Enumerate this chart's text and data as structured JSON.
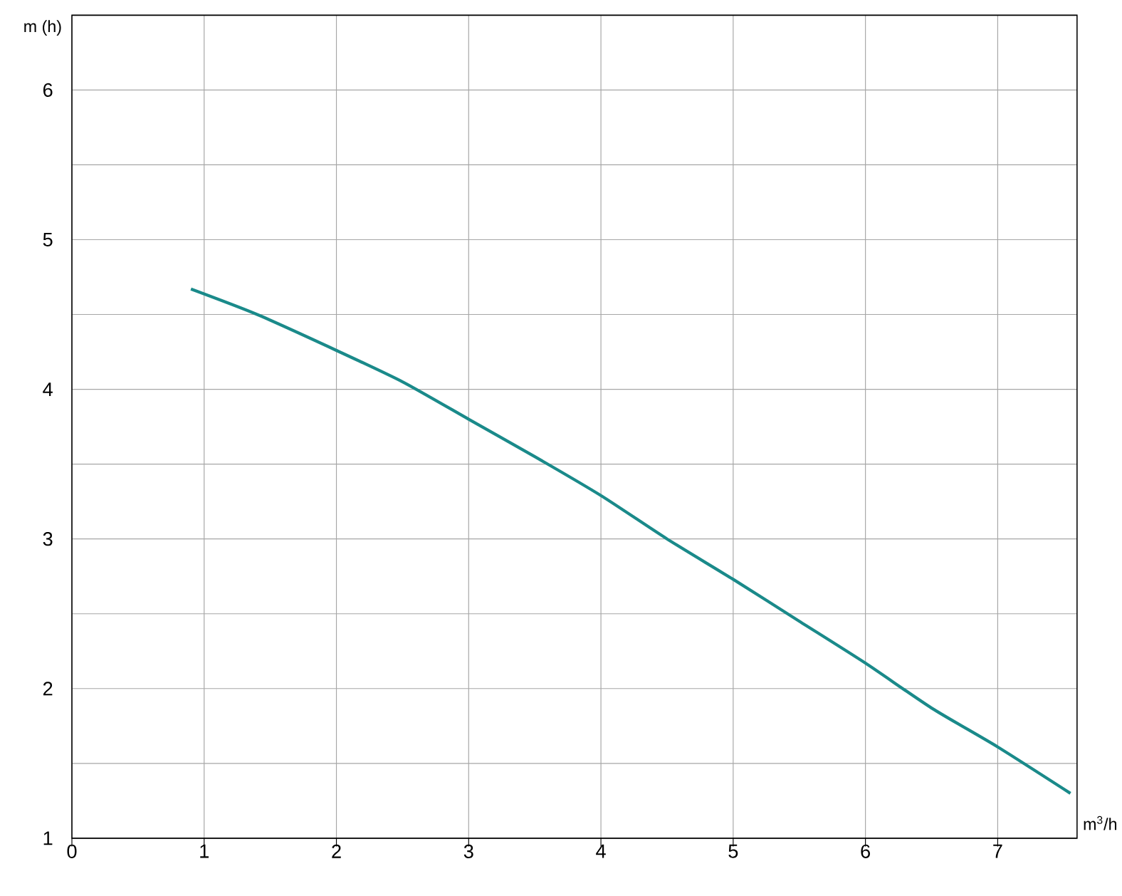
{
  "chart_data": {
    "type": "line",
    "xlabel": "m$^{3}$/h",
    "ylabel": "m (h)",
    "x": [
      0.9,
      1.4,
      2,
      2.5,
      3,
      3.5,
      4,
      4.5,
      5,
      5.5,
      6,
      6.5,
      7,
      7.55
    ],
    "series": [
      {
        "color": "#1a8a8a",
        "values": [
          4.67,
          4.5,
          4.26,
          4.05,
          3.8,
          3.55,
          3.29,
          3.0,
          2.73,
          2.45,
          2.17,
          1.87,
          1.61,
          1.3
        ]
      }
    ],
    "xlim": [
      0,
      7.6
    ],
    "ylim": [
      1,
      6.5
    ],
    "xticks": [
      0,
      1,
      2,
      3,
      4,
      5,
      6,
      7
    ],
    "yticks": [
      {
        "value": 1,
        "label": "1"
      },
      {
        "value": 1.5,
        "label": null
      },
      {
        "value": 2,
        "label": "2"
      },
      {
        "value": 2.5,
        "label": null
      },
      {
        "value": 3,
        "label": "3"
      },
      {
        "value": 3.5,
        "label": null
      },
      {
        "value": 4,
        "label": "4"
      },
      {
        "value": 4.5,
        "label": null
      },
      {
        "value": 5,
        "label": "5"
      },
      {
        "value": 5.5,
        "label": null
      },
      {
        "value": 6,
        "label": "6"
      },
      {
        "value": 6.5,
        "label": null
      }
    ],
    "grid": true,
    "marker": "none",
    "line_style": "solid"
  }
}
